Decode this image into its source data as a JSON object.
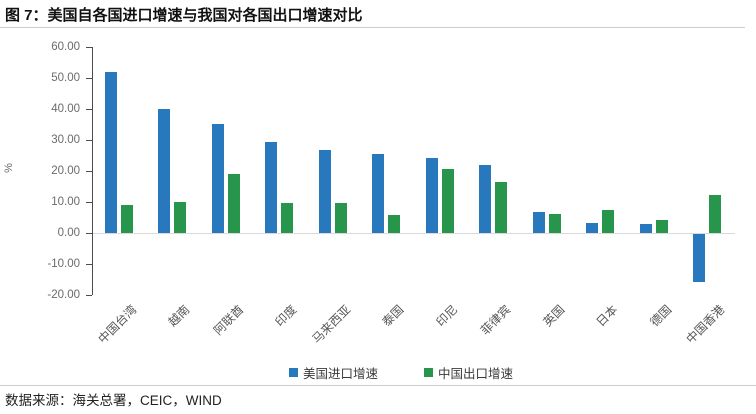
{
  "title": "图 7：美国自各国进口增速与我国对各国出口增速对比",
  "source_note": "数据来源：海关总署，CEIC，WIND",
  "colors": {
    "us_import_blue": "#2878BE",
    "china_export_green": "#28954C",
    "zero_line": "#d9d9d9",
    "axis": "#4d4d4d",
    "divider": "#c9cdd1"
  },
  "chart_data": {
    "type": "bar",
    "title": "美国自各国进口增速与我国对各国出口增速对比",
    "categories": [
      "中国台湾",
      "越南",
      "阿联酋",
      "印度",
      "马来西亚",
      "泰国",
      "印尼",
      "菲律宾",
      "英国",
      "日本",
      "德国",
      "中国香港"
    ],
    "series": [
      {
        "name": "美国进口增速",
        "color": "#2878BE",
        "values": [
          52.0,
          39.9,
          35.2,
          29.3,
          26.9,
          25.5,
          24.3,
          21.8,
          6.8,
          3.2,
          3.0,
          -15.5
        ]
      },
      {
        "name": "中国出口增速",
        "color": "#28954C",
        "values": [
          8.9,
          10.0,
          18.9,
          9.8,
          9.7,
          5.7,
          20.7,
          16.5,
          6.1,
          7.5,
          4.2,
          12.2
        ]
      }
    ],
    "xlabel": "",
    "ylabel": "%",
    "ylim": [
      -20,
      60
    ],
    "ytick_step": 10,
    "ytick_labels": [
      "60.00",
      "50.00",
      "40.00",
      "30.00",
      "20.00",
      "10.00",
      "0.00",
      "-10.00",
      "-20.00"
    ],
    "grid": "zero-line-only",
    "legend_position": "bottom"
  }
}
